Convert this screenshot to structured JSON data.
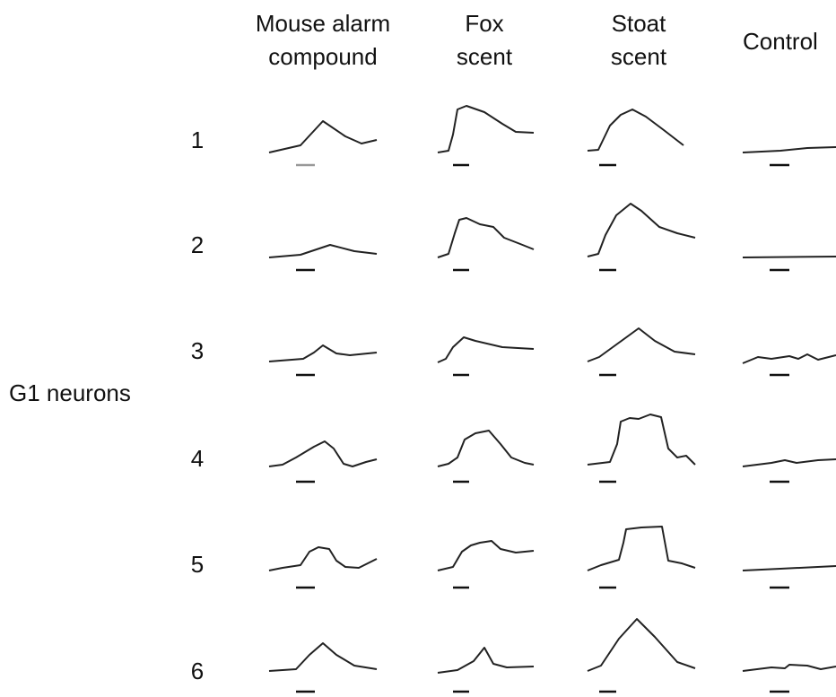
{
  "header": {
    "columns": [
      [
        "Mouse alarm",
        "compound"
      ],
      [
        "Fox",
        "scent"
      ],
      [
        "Stoat",
        "scent"
      ],
      [
        "Control"
      ]
    ]
  },
  "side_label": "G1 neurons",
  "rows": [
    "1",
    "2",
    "3",
    "4",
    "5",
    "6"
  ]
}
